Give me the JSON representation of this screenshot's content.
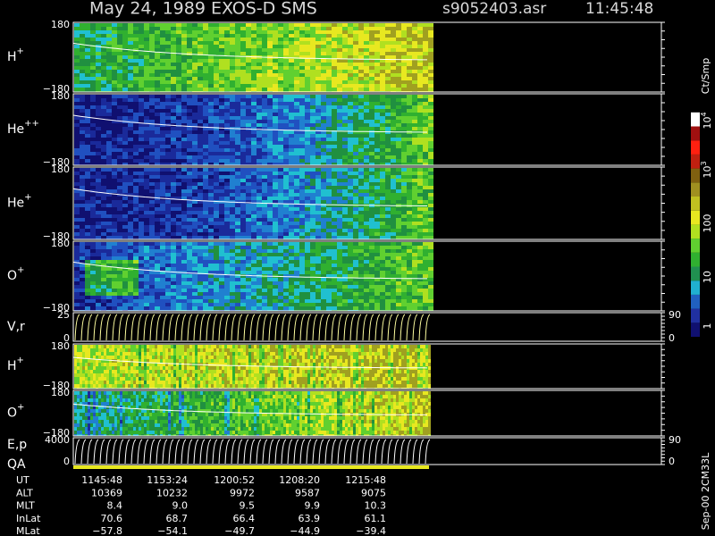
{
  "header": {
    "title": "May 24, 1989   EXOS-D SMS",
    "file": "s9052403.asr",
    "time": "11:45:48"
  },
  "panels": [
    {
      "label": "H",
      "charge": "+",
      "ticks": [
        "180",
        "−180"
      ]
    },
    {
      "label": "He",
      "charge": "++",
      "ticks": [
        "180",
        "−180"
      ]
    },
    {
      "label": "He",
      "charge": "+",
      "ticks": [
        "180",
        "−180"
      ]
    },
    {
      "label": "O",
      "charge": "+",
      "ticks": [
        "180",
        "−180"
      ]
    },
    {
      "label": "V,r",
      "ticks": [
        "25",
        "0"
      ],
      "right_ticks": [
        "90",
        "0"
      ]
    },
    {
      "label": "H",
      "charge": "+",
      "ticks": [
        "180",
        "−180"
      ]
    },
    {
      "label": "O",
      "charge": "+",
      "ticks": [
        "180",
        "−180"
      ]
    },
    {
      "label": "E,p",
      "ticks": [
        "4000",
        "0"
      ],
      "right_ticks": [
        "90",
        "0"
      ]
    }
  ],
  "qa_label": "QA",
  "colorbar": {
    "unit": "Ct/Smp",
    "ticks": [
      {
        "base": "10",
        "exp": "4"
      },
      {
        "base": "10",
        "exp": "3"
      },
      {
        "base": "100"
      },
      {
        "base": "10"
      },
      {
        "base": "1"
      }
    ]
  },
  "footer_note": "Sep-00 2CM33L",
  "table": {
    "rows": [
      {
        "name": "UT",
        "values": [
          "1145:48",
          "1153:24",
          "1200:52",
          "1208:20",
          "1215:48"
        ]
      },
      {
        "name": "ALT",
        "values": [
          "10369",
          "10232",
          "9972",
          "9587",
          "9075"
        ]
      },
      {
        "name": "MLT",
        "values": [
          "8.4",
          "9.0",
          "9.5",
          "9.9",
          "10.3"
        ]
      },
      {
        "name": "InLat",
        "values": [
          "70.6",
          "68.7",
          "66.4",
          "63.9",
          "61.1"
        ]
      },
      {
        "name": "MLat",
        "values": [
          "−57.8",
          "−54.1",
          "−49.7",
          "−44.9",
          "−39.4"
        ]
      }
    ]
  }
}
